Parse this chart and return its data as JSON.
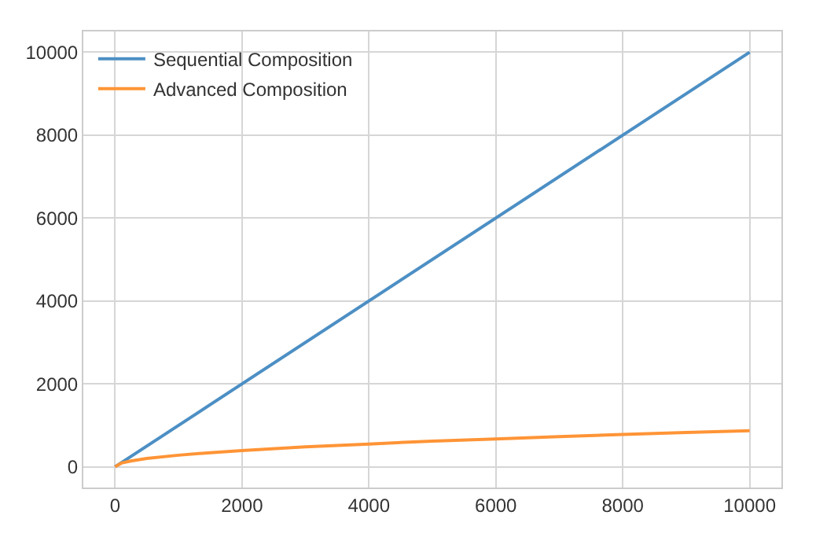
{
  "chart_data": {
    "type": "line",
    "xlim": [
      -500,
      10500
    ],
    "ylim": [
      -500,
      10500
    ],
    "xticks": [
      0,
      2000,
      4000,
      6000,
      8000,
      10000
    ],
    "yticks": [
      0,
      2000,
      4000,
      6000,
      8000,
      10000
    ],
    "grid": true,
    "legend": "top left",
    "marker": "none",
    "line_style": "solid",
    "series": [
      {
        "name": "Sequential Composition",
        "color": "#4c8fc4",
        "x": [
          0,
          10000
        ],
        "values": [
          0,
          10000
        ]
      },
      {
        "name": "Advanced Composition",
        "color": "#ff9436",
        "x": [
          0,
          100,
          250,
          500,
          1000,
          1500,
          2000,
          3000,
          4000,
          5000,
          6000,
          7000,
          8000,
          9000,
          10000
        ],
        "values": [
          0,
          90,
          140,
          200,
          280,
          340,
          390,
          480,
          550,
          620,
          670,
          730,
          780,
          830,
          870
        ]
      }
    ]
  }
}
